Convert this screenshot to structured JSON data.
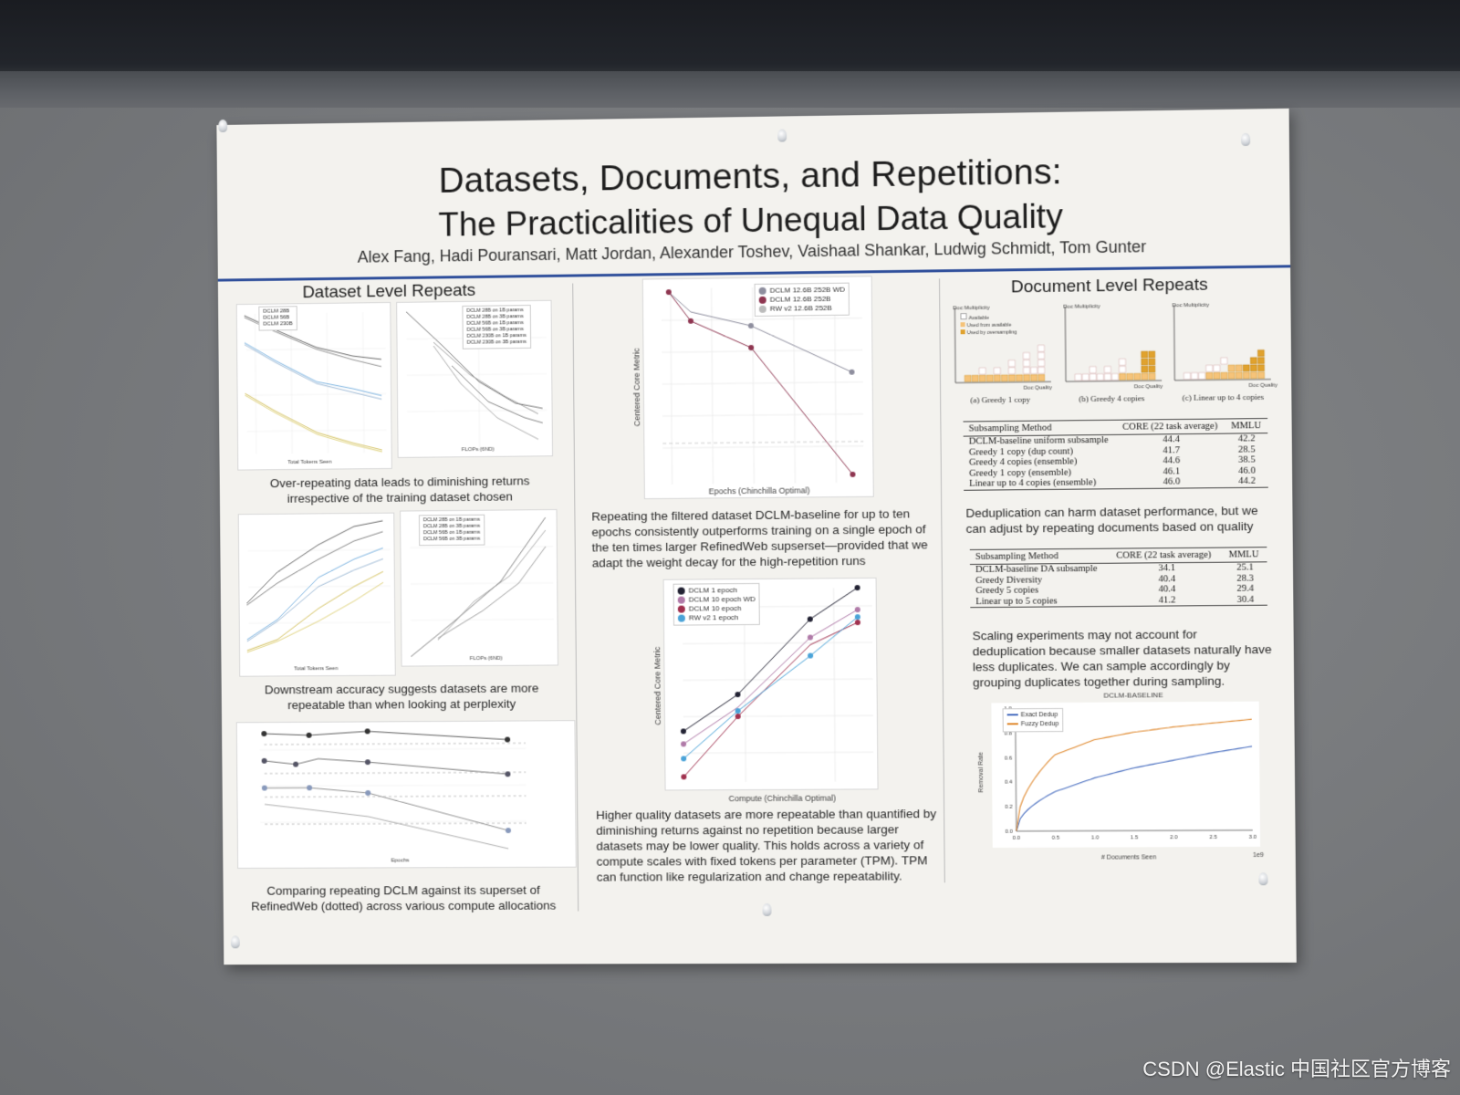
{
  "poster": {
    "title_line1": "Datasets, Documents, and Repetitions:",
    "title_line2": "The Practicalities of Unequal Data Quality",
    "authors": "Alex Fang, Hadi Pouransari, Matt Jordan, Alexander Toshev, Vaishaal Shankar, Ludwig Schmidt, Tom Gunter"
  },
  "left": {
    "heading": "Dataset Level Repeats",
    "caption1": "Over-repeating data leads to diminishing returns irrespective of the training dataset chosen",
    "caption2": "Downstream accuracy suggests datasets are more repeatable than when looking at perplexity",
    "caption3": "Comparing repeating DCLM against its superset of RefinedWeb (dotted) across various compute allocations",
    "plot1": {
      "xlabel": "Total Tokens Seen",
      "ylabel": "C4 Val Perplexity",
      "legend": [
        "DCLM 28B",
        "DCLM 56B",
        "DCLM 230B",
        "RW v2 28B",
        "RW v2 56B",
        "RW v2 1664B",
        "C4 28B",
        "C4 56B",
        "C4 174B"
      ]
    },
    "plot2": {
      "xlabel": "FLOPs (6ND)",
      "legend": [
        "DCLM 28B on 1B params",
        "DCLM 28B on 3B params",
        "DCLM 56B on 1B params",
        "DCLM 56B on 3B params",
        "DCLM 230B on 1B params",
        "DCLM 230B on 3B params"
      ]
    },
    "plot3": {
      "xlabel": "Total Tokens Seen",
      "ylabel": "Centered Core Metric"
    },
    "plot4": {
      "xlabel": "FLOPs (6ND)"
    },
    "plot5": {
      "xlabel": "Epochs",
      "ylabel": "Centered Core Metric"
    }
  },
  "middle": {
    "plot_top": {
      "xlabel": "Epochs (Chinchilla Optimal)",
      "ylabel": "Centered Core Metric",
      "legend": [
        "DCLM 12.6B 252B WD",
        "DCLM 12.6B 252B",
        "RW v2 12.6B 252B"
      ],
      "colors": [
        "#8e8e9e",
        "#8e3550",
        "#bbbbbb"
      ]
    },
    "para1": "Repeating the filtered dataset DCLM-baseline for up to ten epochs consistently outperforms training on a single epoch of the ten times larger RefinedWeb supserset—provided that we adapt the weight decay for the high-repetition runs",
    "plot_bottom": {
      "xlabel": "Compute (Chinchilla Optimal)",
      "ylabel": "Centered Core Metric",
      "legend": [
        "DCLM 1 epoch",
        "DCLM 10 epoch WD",
        "DCLM 10 epoch",
        "RW v2 1 epoch"
      ],
      "colors": [
        "#222233",
        "#b07aa8",
        "#a0304e",
        "#4aa3d8"
      ]
    },
    "para2": "Higher quality datasets are more repeatable than quantified by diminishing returns against no repetition because larger datasets may be lower quality. This holds across a variety of compute scales with fixed tokens per parameter (TPM). TPM can function like regularization and change repeatability."
  },
  "right": {
    "heading": "Document Level Repeats",
    "panels": [
      {
        "caption": "(a) Greedy 1 copy"
      },
      {
        "caption": "(b) Greedy 4 copies"
      },
      {
        "caption": "(c) Linear up to 4 copies"
      }
    ],
    "panel_ylabel": "Doc Multiplicity",
    "panel_xlabel": "Doc Quality",
    "panel_legend": [
      "Available",
      "Used from available",
      "Used by oversampling"
    ],
    "table1": {
      "headers": [
        "Subsampling Method",
        "CORE (22 task average)",
        "MMLU"
      ],
      "rows": [
        [
          "DCLM-baseline uniform subsample",
          "44.4",
          "42.2"
        ],
        [
          "Greedy 1 copy (dup count)",
          "41.7",
          "28.5"
        ],
        [
          "Greedy 4 copies (ensemble)",
          "44.6",
          "38.5"
        ],
        [
          "Greedy 1 copy (ensemble)",
          "46.1",
          "46.0"
        ],
        [
          "Linear up to 4 copies (ensemble)",
          "46.0",
          "44.2"
        ]
      ]
    },
    "para1": "Deduplication can harm dataset performance, but we can adjust by repeating documents based on quality",
    "table2": {
      "headers": [
        "Subsampling Method",
        "CORE (22 task average)",
        "MMLU"
      ],
      "rows": [
        [
          "DCLM-baseline DA subsample",
          "34.1",
          "25.1"
        ],
        [
          "Greedy Diversity",
          "40.4",
          "28.3"
        ],
        [
          "Greedy 5 copies",
          "40.4",
          "29.4"
        ],
        [
          "Linear up to 5 copies",
          "41.2",
          "30.4"
        ]
      ]
    },
    "para2": "Scaling experiments may not account for deduplication because smaller datasets naturally have less duplicates. We can sample accordingly by grouping duplicates together during sampling.",
    "dedup_chart": {
      "title": "DCLM-BASELINE",
      "xlabel": "# Documents Seen",
      "ylabel": "Removal Rate",
      "xticks": [
        "0.0",
        "0.5",
        "1.0",
        "1.5",
        "2.0",
        "2.5",
        "3.0"
      ],
      "yticks": [
        "0.0",
        "0.2",
        "0.4",
        "0.6",
        "0.8",
        "1.0"
      ],
      "xscale": "1e9",
      "legend": [
        "Exact Dedup",
        "Fuzzy Dedup"
      ],
      "colors": [
        "#4a6fc0",
        "#e08a30"
      ]
    }
  },
  "watermark": "CSDN @Elastic 中国社区官方博客",
  "chart_data": [
    {
      "type": "line",
      "xlabel": "Epochs (Chinchilla Optimal)",
      "ylabel": "Centered Core Metric",
      "ylim": [
        0.49,
        0.55
      ],
      "series": [
        {
          "name": "DCLM 12.6B 252B WD",
          "x": [
            1,
            2,
            5,
            10
          ],
          "values": [
            0.552,
            0.543,
            0.538,
            0.522
          ]
        },
        {
          "name": "DCLM 12.6B 252B",
          "x": [
            1,
            2,
            5,
            10
          ],
          "values": [
            0.552,
            0.541,
            0.534,
            0.493
          ]
        },
        {
          "name": "RW v2 12.6B 252B",
          "x": [
            1,
            10
          ],
          "values": [
            0.503,
            0.503
          ]
        }
      ]
    },
    {
      "type": "line",
      "xlabel": "Compute (Chinchilla Optimal)",
      "ylabel": "Centered Core Metric",
      "ylim": [
        0.22,
        0.58
      ],
      "series": [
        {
          "name": "DCLM 1 epoch",
          "values": [
            0.31,
            0.38,
            0.51,
            0.56
          ]
        },
        {
          "name": "DCLM 10 epoch WD",
          "values": [
            0.29,
            0.35,
            0.47,
            0.52
          ]
        },
        {
          "name": "DCLM 10 epoch",
          "values": [
            0.24,
            0.34,
            0.46,
            0.5
          ]
        },
        {
          "name": "RW v2 1 epoch",
          "values": [
            0.27,
            0.35,
            0.44,
            0.51
          ]
        }
      ]
    },
    {
      "type": "line",
      "title": "DCLM-BASELINE",
      "xlabel": "# Documents Seen",
      "ylabel": "Removal Rate",
      "ylim": [
        0.0,
        1.0
      ],
      "x": [
        0.0,
        0.5,
        1.0,
        1.5,
        2.0,
        2.5,
        3.0
      ],
      "series": [
        {
          "name": "Exact Dedup",
          "values": [
            0.0,
            0.32,
            0.43,
            0.51,
            0.57,
            0.63,
            0.68
          ]
        },
        {
          "name": "Fuzzy Dedup",
          "values": [
            0.0,
            0.62,
            0.74,
            0.8,
            0.84,
            0.87,
            0.9
          ]
        }
      ]
    }
  ]
}
